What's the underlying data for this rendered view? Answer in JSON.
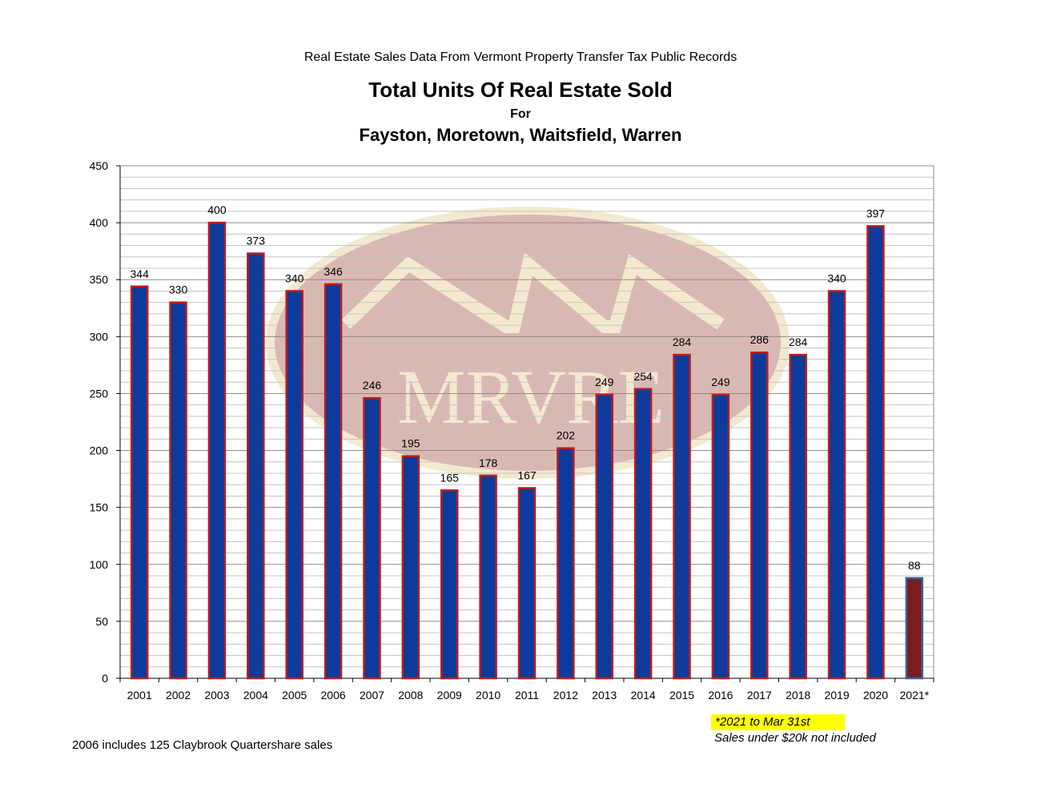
{
  "header": {
    "source": "Real Estate Sales Data From Vermont Property Transfer Tax Public Records",
    "title": "Total Units Of Real Estate Sold",
    "for": "For",
    "towns": "Fayston, Moretown, Waitsfield, Warren"
  },
  "watermark": {
    "text": "MRVRE"
  },
  "notes": {
    "partial_year": "*2021 to Mar 31st",
    "exclusion": "Sales under $20k not included",
    "footnote_2006": "2006 includes 125 Claybrook Quartershare sales"
  },
  "colors": {
    "bar_fill": "#0e3a9b",
    "bar_outline": "#b81e1e",
    "partial_bar_fill": "#7a1d1d",
    "partial_bar_outline": "#3a5fa8",
    "highlight": "#ffff00",
    "watermark_oval": "#d9b8b3",
    "watermark_rim": "#f3e9cf"
  },
  "chart_data": {
    "type": "bar",
    "categories": [
      "2001",
      "2002",
      "2003",
      "2004",
      "2005",
      "2006",
      "2007",
      "2008",
      "2009",
      "2010",
      "2011",
      "2012",
      "2013",
      "2014",
      "2015",
      "2016",
      "2017",
      "2018",
      "2019",
      "2020",
      "2021*"
    ],
    "values": [
      344,
      330,
      400,
      373,
      340,
      346,
      246,
      195,
      165,
      178,
      167,
      202,
      249,
      254,
      284,
      249,
      286,
      284,
      340,
      397,
      88
    ],
    "partial_categories": [
      "2021*"
    ],
    "ylim": [
      0,
      450
    ],
    "yticks": [
      0,
      50,
      100,
      150,
      200,
      250,
      300,
      350,
      400,
      450
    ],
    "minor_grid_step": 10,
    "grid": true,
    "legend": "none",
    "data_labels": true
  }
}
